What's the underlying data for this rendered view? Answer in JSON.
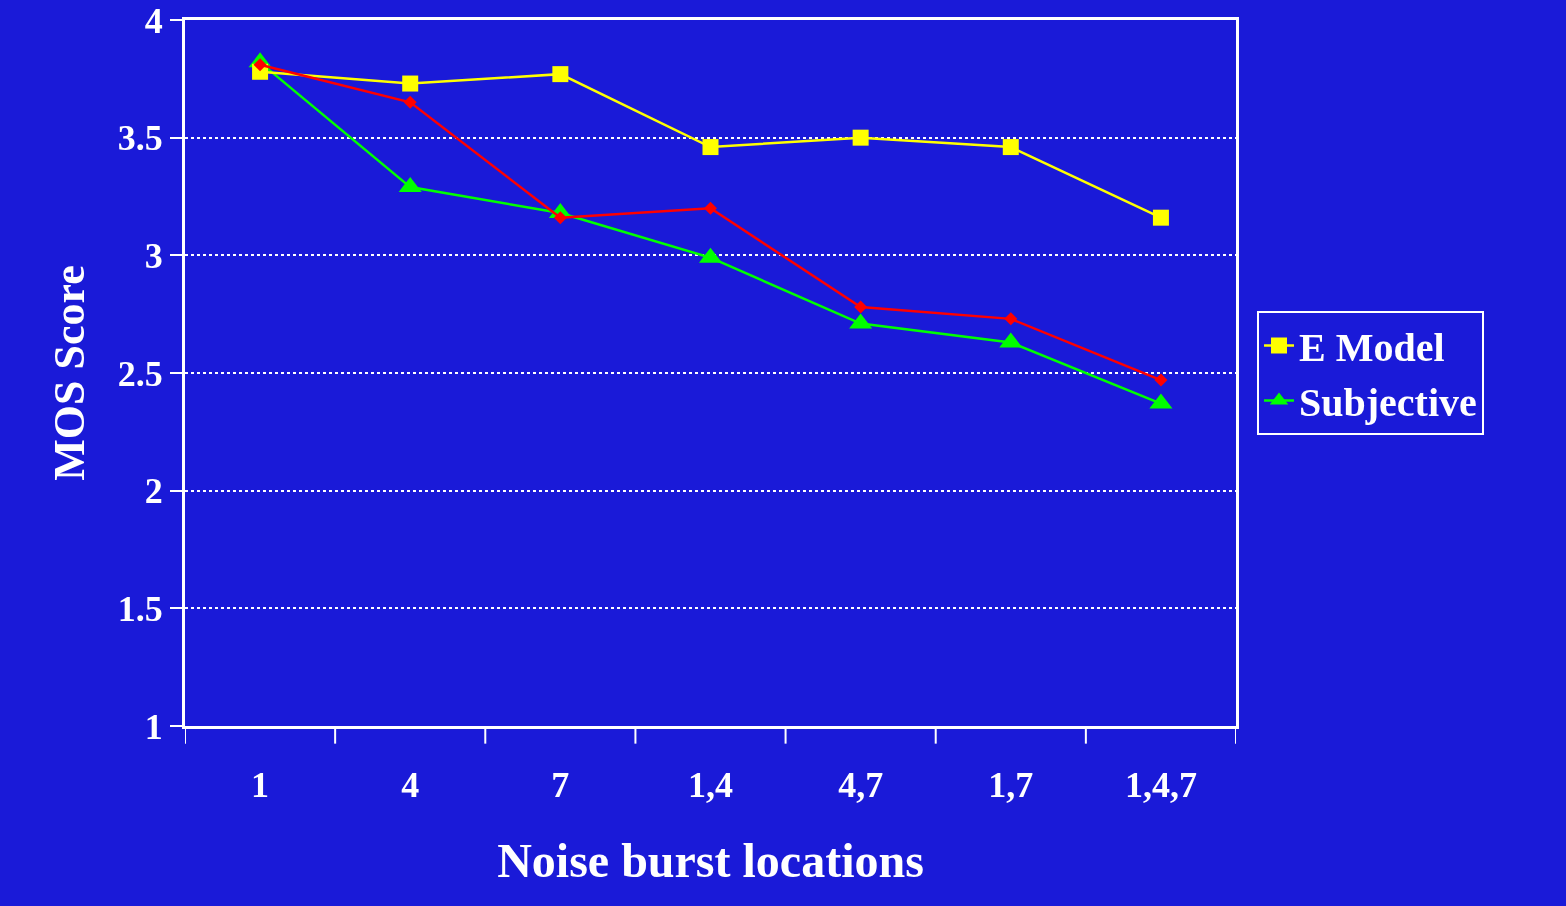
{
  "chart_data": {
    "type": "line",
    "xlabel": "Noise burst locations",
    "ylabel": "MOS Score",
    "categories": [
      "1",
      "4",
      "7",
      "1,4",
      "4,7",
      "1,7",
      "1,4,7"
    ],
    "series": [
      {
        "color": "#ff0000",
        "marker": "diamond",
        "values": [
          3.81,
          3.65,
          3.16,
          3.2,
          2.78,
          2.73,
          2.47
        ]
      },
      {
        "name": "E Model",
        "color": "#ffff00",
        "marker": "square",
        "values": [
          3.78,
          3.73,
          3.77,
          3.46,
          3.5,
          3.46,
          3.16
        ]
      },
      {
        "name": "Subjective",
        "color": "#00ff00",
        "marker": "triangle",
        "values": [
          3.82,
          3.29,
          3.18,
          2.99,
          2.71,
          2.63,
          2.37
        ]
      }
    ],
    "ylim": [
      1,
      4
    ],
    "yticks": [
      1,
      1.5,
      2,
      2.5,
      3,
      3.5,
      4
    ],
    "grid": "y",
    "legend": "right",
    "line_style": "solid"
  }
}
